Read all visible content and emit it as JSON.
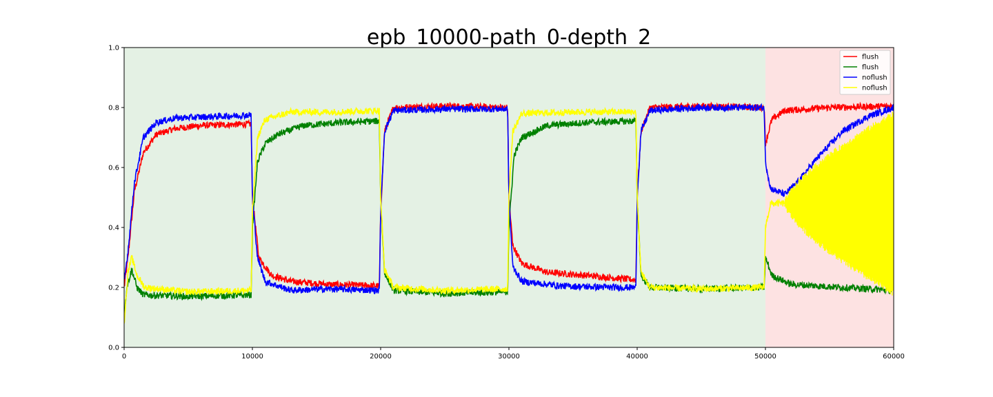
{
  "chart_data": {
    "type": "line",
    "title": "epb_10000-path_0-depth_2",
    "xlabel": "",
    "ylabel": "",
    "xlim": [
      0,
      60000
    ],
    "ylim": [
      0.0,
      1.0
    ],
    "x_ticks": [
      "0",
      "10000",
      "20000",
      "30000",
      "40000",
      "50000",
      "60000"
    ],
    "y_ticks": [
      "0.0",
      "0.2",
      "0.4",
      "0.6",
      "0.8",
      "1.0"
    ],
    "grid": false,
    "legend_position": "top-right",
    "background_regions": [
      {
        "x_start": 0,
        "x_end": 50000,
        "color": "#e4f1e4"
      },
      {
        "x_start": 50000,
        "x_end": 60000,
        "color": "#fde2e2"
      }
    ],
    "series": [
      {
        "name": "flush",
        "color": "#ff0000",
        "points": [
          [
            0,
            0.2
          ],
          [
            300,
            0.3
          ],
          [
            800,
            0.52
          ],
          [
            1500,
            0.65
          ],
          [
            2500,
            0.71
          ],
          [
            4000,
            0.73
          ],
          [
            6000,
            0.74
          ],
          [
            9900,
            0.745
          ],
          [
            10000,
            0.5
          ],
          [
            10500,
            0.3
          ],
          [
            11500,
            0.24
          ],
          [
            13000,
            0.22
          ],
          [
            16000,
            0.21
          ],
          [
            19900,
            0.205
          ],
          [
            20000,
            0.45
          ],
          [
            20300,
            0.72
          ],
          [
            21000,
            0.8
          ],
          [
            25000,
            0.805
          ],
          [
            29900,
            0.8
          ],
          [
            30000,
            0.5
          ],
          [
            30300,
            0.34
          ],
          [
            31000,
            0.28
          ],
          [
            33000,
            0.25
          ],
          [
            36000,
            0.24
          ],
          [
            39900,
            0.225
          ],
          [
            40000,
            0.5
          ],
          [
            40300,
            0.72
          ],
          [
            41000,
            0.8
          ],
          [
            45000,
            0.805
          ],
          [
            49900,
            0.8
          ],
          [
            50000,
            0.68
          ],
          [
            50500,
            0.76
          ],
          [
            51500,
            0.79
          ],
          [
            55000,
            0.8
          ],
          [
            60000,
            0.805
          ]
        ]
      },
      {
        "name": "flush",
        "color": "#008000",
        "points": [
          [
            0,
            0.1
          ],
          [
            200,
            0.2
          ],
          [
            600,
            0.26
          ],
          [
            1000,
            0.2
          ],
          [
            1500,
            0.175
          ],
          [
            5000,
            0.17
          ],
          [
            9900,
            0.175
          ],
          [
            10000,
            0.4
          ],
          [
            10400,
            0.62
          ],
          [
            11000,
            0.68
          ],
          [
            12000,
            0.71
          ],
          [
            14000,
            0.74
          ],
          [
            17000,
            0.75
          ],
          [
            19900,
            0.755
          ],
          [
            20000,
            0.5
          ],
          [
            20300,
            0.25
          ],
          [
            21000,
            0.19
          ],
          [
            25000,
            0.18
          ],
          [
            29900,
            0.185
          ],
          [
            30000,
            0.4
          ],
          [
            30400,
            0.64
          ],
          [
            31000,
            0.7
          ],
          [
            33000,
            0.74
          ],
          [
            36000,
            0.75
          ],
          [
            39900,
            0.755
          ],
          [
            40000,
            0.5
          ],
          [
            40300,
            0.24
          ],
          [
            41000,
            0.2
          ],
          [
            45000,
            0.195
          ],
          [
            49900,
            0.2
          ],
          [
            50000,
            0.3
          ],
          [
            50500,
            0.24
          ],
          [
            52000,
            0.21
          ],
          [
            56000,
            0.2
          ],
          [
            60000,
            0.19
          ]
        ]
      },
      {
        "name": "noflush",
        "color": "#0000ff",
        "points": [
          [
            0,
            0.22
          ],
          [
            300,
            0.32
          ],
          [
            800,
            0.55
          ],
          [
            1500,
            0.7
          ],
          [
            2500,
            0.75
          ],
          [
            4000,
            0.765
          ],
          [
            7000,
            0.77
          ],
          [
            9900,
            0.775
          ],
          [
            10000,
            0.5
          ],
          [
            10400,
            0.3
          ],
          [
            11000,
            0.22
          ],
          [
            13000,
            0.19
          ],
          [
            16000,
            0.195
          ],
          [
            19900,
            0.19
          ],
          [
            20000,
            0.45
          ],
          [
            20300,
            0.72
          ],
          [
            21000,
            0.79
          ],
          [
            25000,
            0.795
          ],
          [
            29900,
            0.795
          ],
          [
            30000,
            0.5
          ],
          [
            30300,
            0.27
          ],
          [
            31000,
            0.22
          ],
          [
            34000,
            0.205
          ],
          [
            38000,
            0.2
          ],
          [
            39900,
            0.2
          ],
          [
            40000,
            0.5
          ],
          [
            40300,
            0.72
          ],
          [
            41000,
            0.79
          ],
          [
            45000,
            0.8
          ],
          [
            49900,
            0.8
          ],
          [
            50000,
            0.62
          ],
          [
            50400,
            0.53
          ],
          [
            51500,
            0.51
          ],
          [
            52500,
            0.55
          ],
          [
            54000,
            0.63
          ],
          [
            56000,
            0.72
          ],
          [
            58000,
            0.77
          ],
          [
            60000,
            0.8
          ]
        ]
      },
      {
        "name": "noflush",
        "color": "#ffff00",
        "points": [
          [
            0,
            0.08
          ],
          [
            300,
            0.25
          ],
          [
            600,
            0.3
          ],
          [
            1000,
            0.24
          ],
          [
            1600,
            0.2
          ],
          [
            5000,
            0.185
          ],
          [
            9900,
            0.19
          ],
          [
            10000,
            0.45
          ],
          [
            10400,
            0.7
          ],
          [
            11000,
            0.76
          ],
          [
            13000,
            0.785
          ],
          [
            16000,
            0.785
          ],
          [
            19900,
            0.79
          ],
          [
            20000,
            0.5
          ],
          [
            20300,
            0.26
          ],
          [
            21000,
            0.2
          ],
          [
            25000,
            0.19
          ],
          [
            29900,
            0.195
          ],
          [
            30000,
            0.5
          ],
          [
            30300,
            0.72
          ],
          [
            31000,
            0.78
          ],
          [
            35000,
            0.785
          ],
          [
            39900,
            0.785
          ],
          [
            40000,
            0.5
          ],
          [
            40300,
            0.25
          ],
          [
            41000,
            0.2
          ],
          [
            45000,
            0.195
          ],
          [
            49900,
            0.2
          ],
          [
            50000,
            0.4
          ],
          [
            50400,
            0.48
          ],
          [
            51500,
            0.48
          ]
        ],
        "oscillation_band": {
          "x_start": 51500,
          "x_end": 60000,
          "upper_start": 0.48,
          "upper_end": 0.78,
          "lower_start": 0.48,
          "lower_end": 0.18
        }
      }
    ]
  }
}
